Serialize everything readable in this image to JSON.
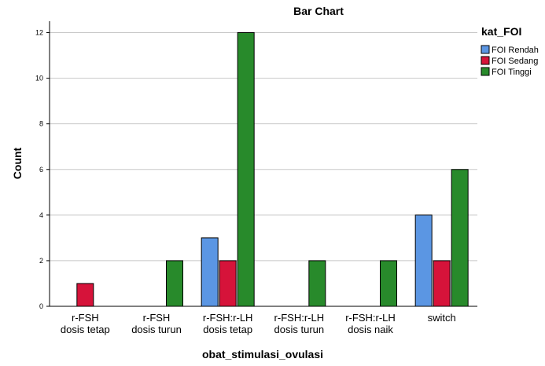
{
  "chart_data": {
    "type": "bar",
    "title": "Bar Chart",
    "xlabel": "obat_stimulasi_ovulasi",
    "ylabel": "Count",
    "ylim": [
      0,
      12.5
    ],
    "yticks": [
      0,
      2,
      4,
      6,
      8,
      10,
      12
    ],
    "grid": true,
    "legend_title": "kat_FOI",
    "legend_position": "top-right",
    "categories": [
      [
        "r-FSH",
        "dosis tetap"
      ],
      [
        "r-FSH",
        "dosis turun"
      ],
      [
        "r-FSH:r-LH",
        "dosis tetap"
      ],
      [
        "r-FSH:r-LH",
        "dosis turun"
      ],
      [
        "r-FSH:r-LH",
        "dosis naik"
      ],
      [
        "switch"
      ]
    ],
    "series": [
      {
        "name": "FOI Rendah",
        "color": "#5b96e3",
        "values": [
          0,
          0,
          3,
          0,
          0,
          4
        ]
      },
      {
        "name": "FOI Sedang",
        "color": "#d6133a",
        "values": [
          1,
          0,
          2,
          0,
          0,
          2
        ]
      },
      {
        "name": "FOI Tinggi",
        "color": "#288a2b",
        "values": [
          0,
          2,
          12,
          2,
          2,
          6
        ]
      }
    ]
  }
}
